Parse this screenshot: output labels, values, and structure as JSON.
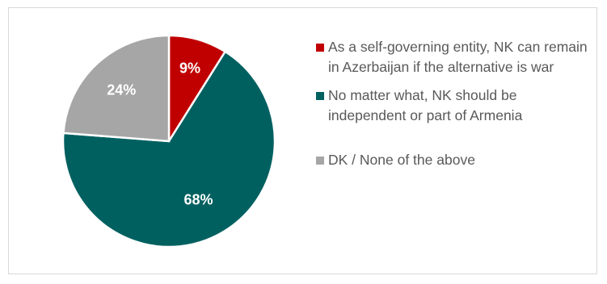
{
  "chart_data": {
    "type": "pie",
    "slices": [
      {
        "label": "As a self-governing entity, NK can remain in Azerbaijan if the alternative is war",
        "value": 9,
        "display": "9%",
        "color": "#c00000"
      },
      {
        "label": "No matter what, NK should be independent or part of Armenia",
        "value": 68,
        "display": "68%",
        "color": "#006060"
      },
      {
        "label": "DK / None of the above",
        "value": 24,
        "display": "24%",
        "color": "#a6a6a6"
      }
    ]
  }
}
